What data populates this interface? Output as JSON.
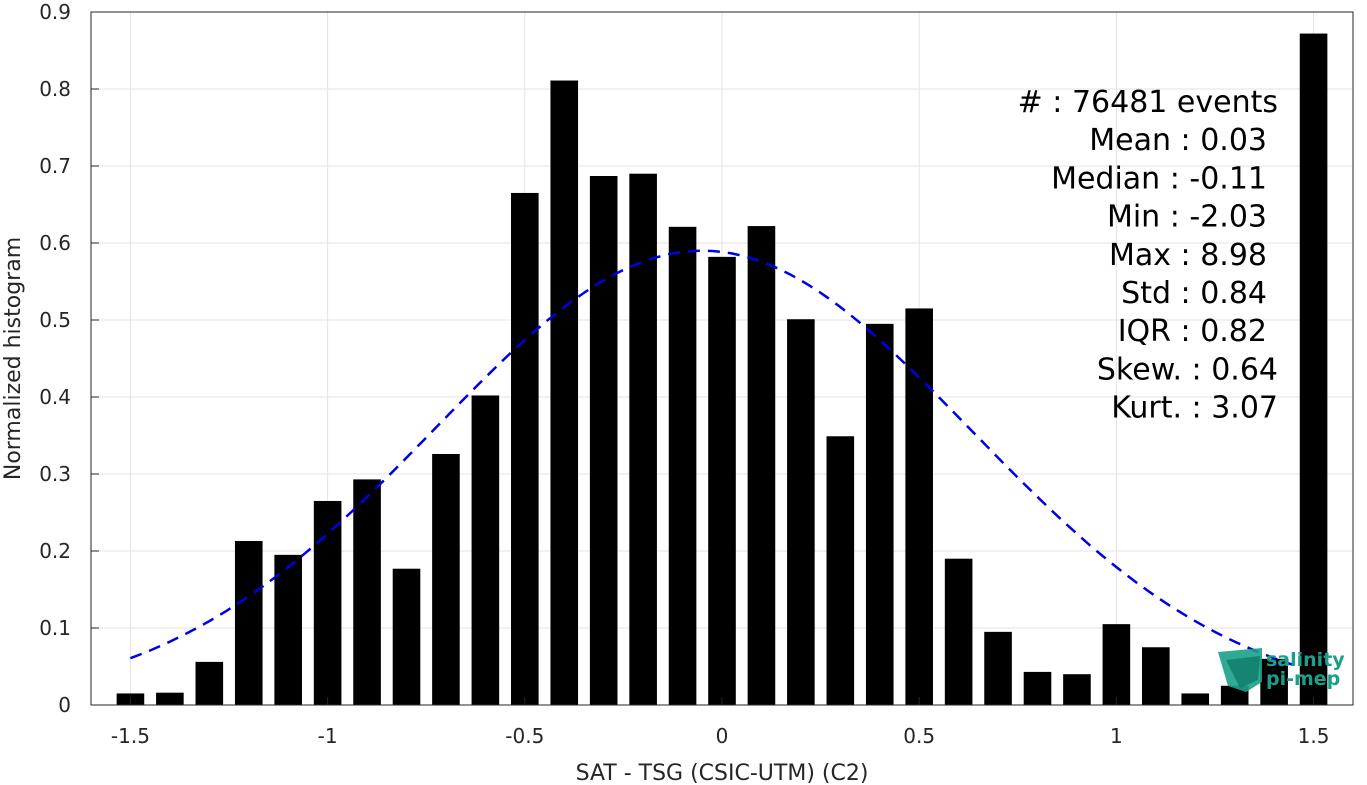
{
  "chart_data": {
    "type": "bar",
    "xlabel": "SAT - TSG (CSIC-UTM) (C2)",
    "ylabel": "Normalized histogram",
    "xlim": [
      -1.6,
      1.6
    ],
    "ylim": [
      0,
      0.9
    ],
    "xticks": [
      -1.5,
      -1,
      -0.5,
      0,
      0.5,
      1,
      1.5
    ],
    "xtick_labels": [
      "-1.5",
      "-1",
      "-0.5",
      "0",
      "0.5",
      "1",
      "1.5"
    ],
    "yticks": [
      0,
      0.1,
      0.2,
      0.3,
      0.4,
      0.5,
      0.6,
      0.7,
      0.8,
      0.9
    ],
    "ytick_labels": [
      "0",
      "0.1",
      "0.2",
      "0.3",
      "0.4",
      "0.5",
      "0.6",
      "0.7",
      "0.8",
      "0.9"
    ],
    "grid": true,
    "bar_color": "#000000",
    "x": [
      -1.5,
      -1.4,
      -1.3,
      -1.2,
      -1.1,
      -1.0,
      -0.9,
      -0.8,
      -0.7,
      -0.6,
      -0.5,
      -0.4,
      -0.3,
      -0.2,
      -0.1,
      0.0,
      0.1,
      0.2,
      0.3,
      0.4,
      0.5,
      0.6,
      0.7,
      0.8,
      0.9,
      1.0,
      1.1,
      1.2,
      1.3,
      1.4,
      1.5
    ],
    "values": [
      0.015,
      0.016,
      0.056,
      0.213,
      0.195,
      0.265,
      0.293,
      0.177,
      0.326,
      0.402,
      0.665,
      0.811,
      0.687,
      0.69,
      0.621,
      0.582,
      0.622,
      0.501,
      0.349,
      0.495,
      0.515,
      0.19,
      0.095,
      0.043,
      0.04,
      0.105,
      0.075,
      0.015,
      0.025,
      0.06,
      0.872
    ],
    "fit_curve": {
      "style": "dashed",
      "color": "#0000e6",
      "distribution": "normal",
      "mean": -0.05,
      "std": 0.68,
      "x_range": [
        -1.5,
        1.45
      ]
    },
    "annotations": [
      "#  : 76481 events",
      "Mean : 0.03",
      "Median : -0.11",
      "Min : -2.03",
      "Max : 8.98",
      "Std : 0.84",
      "IQR : 0.82",
      "Skew. : 0.64",
      "Kurt. : 3.07"
    ]
  },
  "logo": {
    "line1": "salinity",
    "line2": "pi-mep",
    "color": "#1aa08a"
  }
}
